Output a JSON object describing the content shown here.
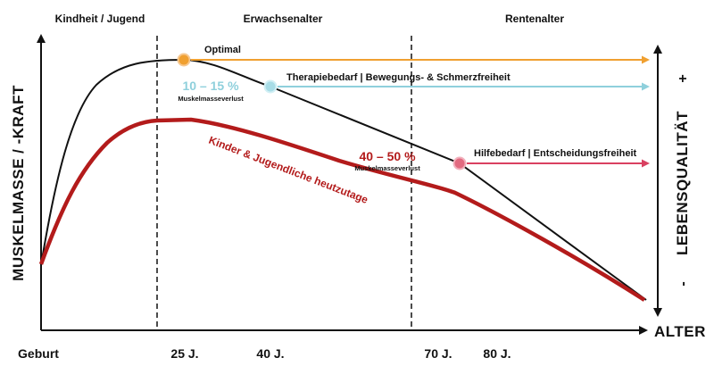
{
  "chart_data": {
    "type": "line",
    "phases": [
      "Kindheit / Jugend",
      "Erwachsenalter",
      "Rentenalter"
    ],
    "x_ticks": [
      {
        "label": "Geburt",
        "age": 0
      },
      {
        "label": "25 J.",
        "age": 25
      },
      {
        "label": "40 J.",
        "age": 40
      },
      {
        "label": "70 J.",
        "age": 70
      },
      {
        "label": "80 J.",
        "age": 80
      }
    ],
    "xlabel": "ALTER",
    "ylabel": "MUSKELMASSE / -KRAFT",
    "y2label": "LEBENSQUALITÄT",
    "y2_plus": "+",
    "y2_minus": "-",
    "series": [
      {
        "name": "",
        "color": "#000000"
      },
      {
        "name": "Kinder & Jugendliche heutzutage",
        "color": "#b31b1b"
      }
    ],
    "markers": [
      {
        "age": 25,
        "label": "Optimal",
        "color": "#f0a030",
        "arrow": "#f0a030"
      },
      {
        "age": 40,
        "label": "Therapiebedarf | Bewegungs- & Schmerzfreiheit",
        "color": "#8fd0dc",
        "arrow": "#8fd0dc"
      },
      {
        "age": 73,
        "label": "Hilfebedarf | Entscheidungsfreiheit",
        "color": "#e05870",
        "arrow": "#d94060"
      }
    ],
    "annotations": [
      {
        "value": "10 – 15 %",
        "sub": "Muskelmasseverlust",
        "color": "#8fd0dc"
      },
      {
        "value": "40 – 50 %",
        "sub": "Muskelmasseverlust",
        "color": "#b31b1b"
      }
    ],
    "grid": false
  }
}
